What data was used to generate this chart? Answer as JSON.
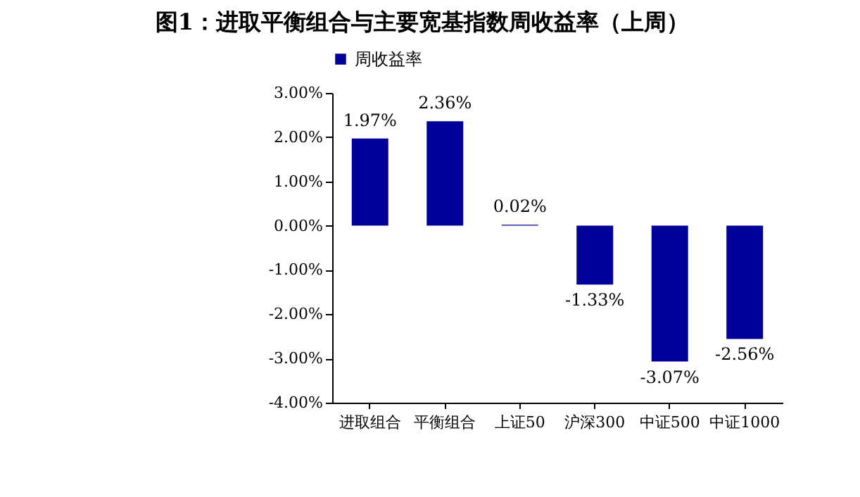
{
  "chart_data": {
    "type": "bar",
    "title": "图1：进取平衡组合与主要宽基指数周收益率（上周）",
    "categories": [
      "进取组合",
      "平衡组合",
      "上证50",
      "沪深300",
      "中证500",
      "中证1000"
    ],
    "series": [
      {
        "name": "周收益率",
        "color": "#00009a",
        "values": [
          1.97,
          2.36,
          0.02,
          -1.33,
          -3.07,
          -2.56
        ],
        "value_labels": [
          "1.97%",
          "2.36%",
          "0.02%",
          "-1.33%",
          "-3.07%",
          "-2.56%"
        ]
      }
    ],
    "ylim": [
      -4,
      3
    ],
    "yticks": [
      {
        "value": 3,
        "label": "3.00%"
      },
      {
        "value": 2,
        "label": "2.00%"
      },
      {
        "value": 1,
        "label": "1.00%"
      },
      {
        "value": 0,
        "label": "0.00%"
      },
      {
        "value": -1,
        "label": "-1.00%"
      },
      {
        "value": -2,
        "label": "-2.00%"
      },
      {
        "value": -3,
        "label": "-3.00%"
      },
      {
        "value": -4,
        "label": "-4.00%"
      }
    ],
    "legend": "top",
    "grid": false
  }
}
